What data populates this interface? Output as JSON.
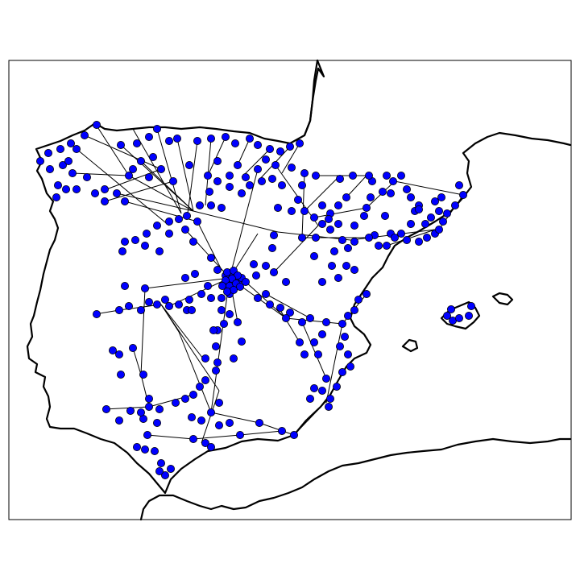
{
  "map": {
    "style": {
      "node_fill": "#0000ff",
      "node_stroke": "#000000",
      "edge_color": "#000000",
      "coastline_color": "#000000",
      "background": "#ffffff"
    }
  }
}
